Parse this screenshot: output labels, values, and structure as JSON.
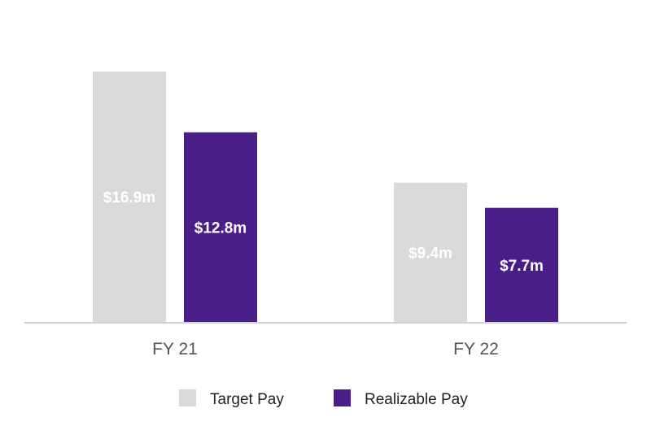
{
  "chart_data": {
    "type": "bar",
    "title": "",
    "xlabel": "",
    "ylabel": "",
    "categories": [
      "FY 21",
      "FY 22"
    ],
    "series": [
      {
        "name": "Target Pay",
        "color": "#d9d9d9",
        "values": [
          16.9,
          9.4
        ],
        "labels": [
          "$16.9m",
          "$9.4m"
        ]
      },
      {
        "name": "Realizable Pay",
        "color": "#4a1d89",
        "values": [
          12.8,
          7.7
        ],
        "labels": [
          "$12.8m",
          "$7.7m"
        ]
      }
    ],
    "ylim": [
      0,
      16.9
    ],
    "grid": false,
    "legend_position": "bottom"
  }
}
